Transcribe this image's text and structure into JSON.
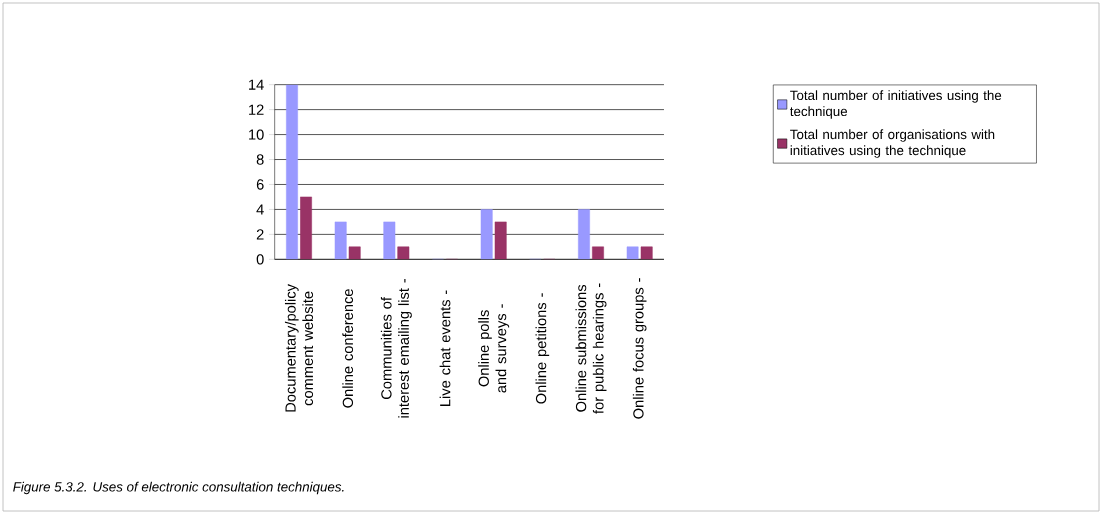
{
  "chart_data": {
    "type": "bar",
    "categories": [
      "Documentary/policy comment website",
      "Online conference",
      "Communities of interest emailing list -",
      "Live chat events -",
      "Online polls and surveys -",
      "Online petitions -",
      "Online submissions for public hearings -",
      "Online focus groups -"
    ],
    "series": [
      {
        "name": "Total number of initiatives using the technique",
        "color": "#9999ff",
        "values": [
          14,
          3,
          3,
          0,
          4,
          0,
          4,
          1
        ]
      },
      {
        "name": "Total number of organisations with initiatives using the technique",
        "color": "#993366",
        "values": [
          5,
          1,
          1,
          0,
          3,
          0,
          1,
          1
        ]
      }
    ],
    "ylim": [
      0,
      14
    ],
    "yticks": [
      0,
      2,
      4,
      6,
      8,
      10,
      12,
      14
    ],
    "grid": "y",
    "legend": "right",
    "annotations": [
      "*Figure 5.3.2. Uses of electronic consultation techniques.*"
    ]
  }
}
